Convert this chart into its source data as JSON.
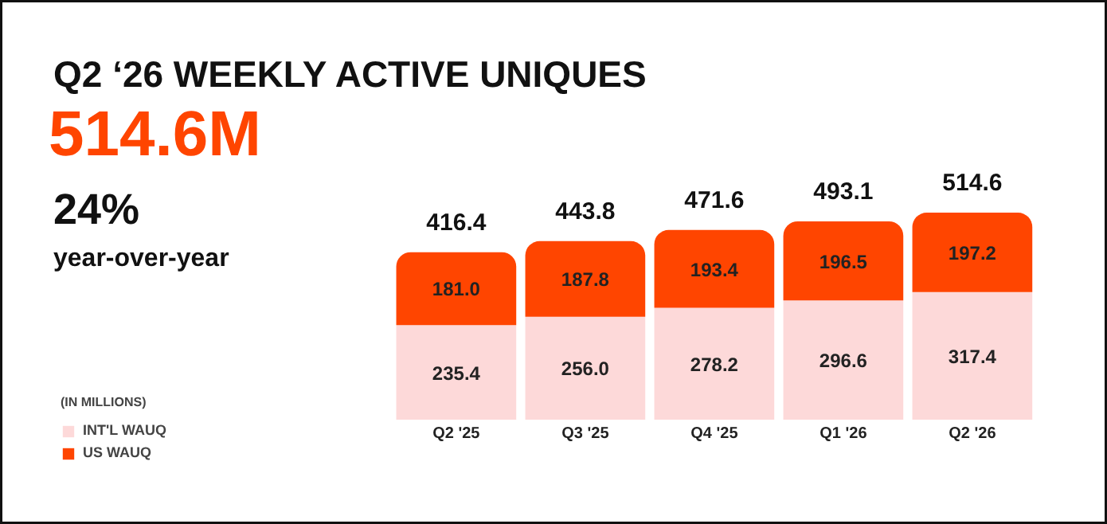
{
  "chart_data": {
    "type": "bar",
    "stacked": true,
    "title": "Q2 ‘26 WEEKLY ACTIVE UNIQUES",
    "subtitle": "514.6M",
    "annotations": [
      "24%",
      "year-over-year"
    ],
    "legend_title": "(IN MILLIONS)",
    "legend": "bottom left",
    "grid": false,
    "categories": [
      "Q2 '25",
      "Q3 '25",
      "Q4 '25",
      "Q1 '26",
      "Q2 '26"
    ],
    "series": [
      {
        "name": "INT'L WAUQ",
        "color": "#fdd9d9",
        "values": [
          235.4,
          256.0,
          278.2,
          296.6,
          317.4
        ],
        "value_labels": [
          "235.4",
          "256.0",
          "278.2",
          "296.6",
          "317.4"
        ]
      },
      {
        "name": "US WAUQ",
        "color": "#ff4500",
        "values": [
          181.0,
          187.8,
          193.4,
          196.5,
          197.2
        ],
        "value_labels": [
          "181.0",
          "187.8",
          "193.4",
          "196.5",
          "197.2"
        ]
      }
    ],
    "totals": [
      "416.4",
      "443.8",
      "471.6",
      "493.1",
      "514.6"
    ]
  }
}
